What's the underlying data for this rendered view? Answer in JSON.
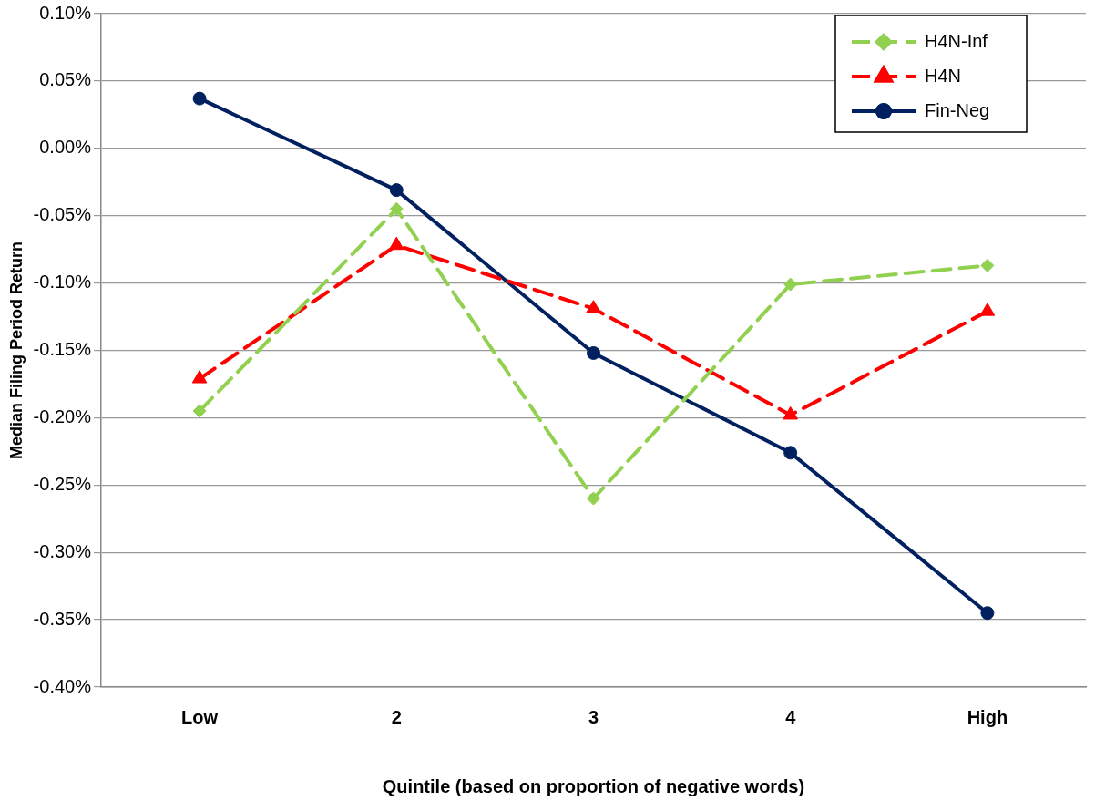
{
  "chart_data": {
    "type": "line",
    "xlabel": "Quintile (based on proportion of negative words)",
    "ylabel": "Median Filing Period Return",
    "categories": [
      "Low",
      "2",
      "3",
      "4",
      "High"
    ],
    "series": [
      {
        "name": "H4N-Inf",
        "color": "#92d050",
        "marker": "diamond",
        "line_style": "dashed",
        "values": [
          -0.195,
          -0.045,
          -0.26,
          -0.101,
          -0.087
        ]
      },
      {
        "name": "H4N",
        "color": "#ff0000",
        "marker": "triangle",
        "line_style": "dashed",
        "values": [
          -0.171,
          -0.072,
          -0.119,
          -0.198,
          -0.121
        ]
      },
      {
        "name": "Fin-Neg",
        "color": "#002060",
        "marker": "circle",
        "line_style": "solid",
        "values": [
          0.037,
          -0.031,
          -0.152,
          -0.226,
          -0.345
        ]
      }
    ],
    "ylim": [
      -0.4,
      0.1
    ],
    "yticks": [
      {
        "value": -0.4,
        "label": "-0.40%"
      },
      {
        "value": -0.35,
        "label": "-0.35%"
      },
      {
        "value": -0.3,
        "label": "-0.30%"
      },
      {
        "value": -0.25,
        "label": "-0.25%"
      },
      {
        "value": -0.2,
        "label": "-0.20%"
      },
      {
        "value": -0.15,
        "label": "-0.15%"
      },
      {
        "value": -0.1,
        "label": "-0.10%"
      },
      {
        "value": -0.05,
        "label": "-0.05%"
      },
      {
        "value": 0,
        "label": "0.00%"
      },
      {
        "value": 0.05,
        "label": "0.05%"
      },
      {
        "value": 0.1,
        "label": "0.10%"
      }
    ],
    "grid": "y",
    "legend": "top right"
  }
}
